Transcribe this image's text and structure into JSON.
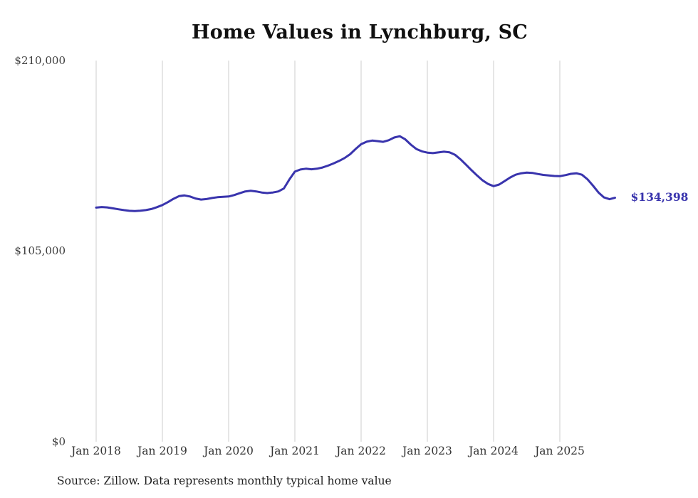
{
  "chart_data": {
    "type": "line",
    "title": "Home Values in Lynchburg, SC",
    "end_label": "$134,398",
    "latest_value": 134398,
    "line_color": "#3934ad",
    "grid_color": "#cccccc",
    "ylim": [
      0,
      210000
    ],
    "xlabel": "",
    "ylabel": "",
    "yticks": [
      {
        "label": "$210,000",
        "value": 210000
      },
      {
        "label": "$105,000",
        "value": 105000
      },
      {
        "label": "$0",
        "value": 0
      }
    ],
    "xticks": [
      {
        "label": "Jan 2018",
        "month_index": 0
      },
      {
        "label": "Jan 2019",
        "month_index": 12
      },
      {
        "label": "Jan 2020",
        "month_index": 24
      },
      {
        "label": "Jan 2021",
        "month_index": 36
      },
      {
        "label": "Jan 2022",
        "month_index": 48
      },
      {
        "label": "Jan 2023",
        "month_index": 60
      },
      {
        "label": "Jan 2024",
        "month_index": 72
      },
      {
        "label": "Jan 2025",
        "month_index": 84
      }
    ],
    "months": [
      "2018-01",
      "2018-02",
      "2018-03",
      "2018-04",
      "2018-05",
      "2018-06",
      "2018-07",
      "2018-08",
      "2018-09",
      "2018-10",
      "2018-11",
      "2018-12",
      "2019-01",
      "2019-02",
      "2019-03",
      "2019-04",
      "2019-05",
      "2019-06",
      "2019-07",
      "2019-08",
      "2019-09",
      "2019-10",
      "2019-11",
      "2019-12",
      "2020-01",
      "2020-02",
      "2020-03",
      "2020-04",
      "2020-05",
      "2020-06",
      "2020-07",
      "2020-08",
      "2020-09",
      "2020-10",
      "2020-11",
      "2020-12",
      "2021-01",
      "2021-02",
      "2021-03",
      "2021-04",
      "2021-05",
      "2021-06",
      "2021-07",
      "2021-08",
      "2021-09",
      "2021-10",
      "2021-11",
      "2021-12",
      "2022-01",
      "2022-02",
      "2022-03",
      "2022-04",
      "2022-05",
      "2022-06",
      "2022-07",
      "2022-08",
      "2022-09",
      "2022-10",
      "2022-11",
      "2022-12",
      "2023-01",
      "2023-02",
      "2023-03",
      "2023-04",
      "2023-05",
      "2023-06",
      "2023-07",
      "2023-08",
      "2023-09",
      "2023-10",
      "2023-11",
      "2023-12",
      "2024-01",
      "2024-02",
      "2024-03",
      "2024-04",
      "2024-05",
      "2024-06",
      "2024-07",
      "2024-08",
      "2024-09",
      "2024-10",
      "2024-11",
      "2024-12",
      "2025-01",
      "2025-02",
      "2025-03",
      "2025-04",
      "2025-05",
      "2025-06",
      "2025-07",
      "2025-08",
      "2025-09",
      "2025-10",
      "2025-11"
    ],
    "values": [
      129000,
      129300,
      129100,
      128600,
      128100,
      127600,
      127200,
      127100,
      127300,
      127600,
      128200,
      129200,
      130400,
      132000,
      133800,
      135300,
      135700,
      135100,
      134000,
      133400,
      133700,
      134300,
      134700,
      134900,
      135100,
      135900,
      136900,
      137900,
      138300,
      137900,
      137300,
      137000,
      137300,
      137900,
      139500,
      144500,
      148800,
      150000,
      150400,
      150100,
      150400,
      151100,
      152100,
      153300,
      154700,
      156300,
      158400,
      161300,
      163900,
      165300,
      165900,
      165600,
      165200,
      166100,
      167600,
      168300,
      166600,
      163700,
      161300,
      160000,
      159300,
      159000,
      159400,
      159800,
      159500,
      158100,
      155600,
      152600,
      149600,
      146700,
      144000,
      142000,
      140800,
      141700,
      143600,
      145600,
      147100,
      147900,
      148300,
      148100,
      147500,
      147000,
      146700,
      146400,
      146300,
      146900,
      147600,
      147900,
      147100,
      144600,
      141100,
      137300,
      134600,
      133600,
      134398
    ],
    "source": "Source: Zillow. Data represents monthly typical home value"
  }
}
